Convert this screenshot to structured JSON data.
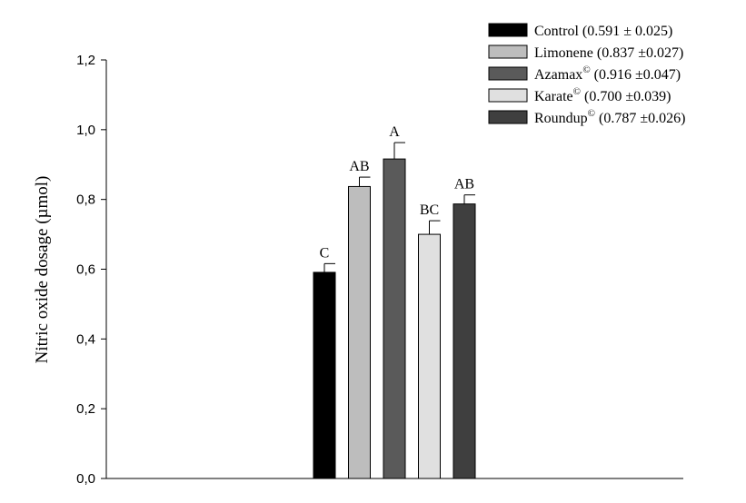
{
  "chart_data": {
    "type": "bar",
    "title": "",
    "xlabel": "",
    "ylabel": "Nitric oxide dosage  (µmol)",
    "ylim": [
      0,
      1.2
    ],
    "yticks": [
      "0,0",
      "0,2",
      "0,4",
      "0,6",
      "0,8",
      "1,0",
      "1,2"
    ],
    "categories": [
      "Control",
      "Limonene",
      "Azamax",
      "Karate",
      "Roundup"
    ],
    "values": [
      0.591,
      0.837,
      0.916,
      0.7,
      0.787
    ],
    "errors": [
      0.025,
      0.027,
      0.047,
      0.039,
      0.026
    ],
    "significance_letters": [
      "C",
      "AB",
      "A",
      "BC",
      "AB"
    ],
    "colors": [
      "#000000",
      "#bdbdbd",
      "#5a5a5a",
      "#e0e0e0",
      "#3f3f3f"
    ],
    "grid": false,
    "legend_position": "top-right",
    "legend": [
      {
        "name": "Control",
        "mark": "",
        "stats": "(0.591 ± 0.025)"
      },
      {
        "name": "Limonene",
        "mark": "",
        "stats": "(0.837 ±0.027)"
      },
      {
        "name": "Azamax",
        "mark": "©",
        "stats": "(0.916 ±0.047)"
      },
      {
        "name": "Karate",
        "mark": "©",
        "stats": "(0.700 ±0.039)"
      },
      {
        "name": "Roundup",
        "mark": "©",
        "stats": "(0.787 ±0.026)"
      }
    ]
  }
}
